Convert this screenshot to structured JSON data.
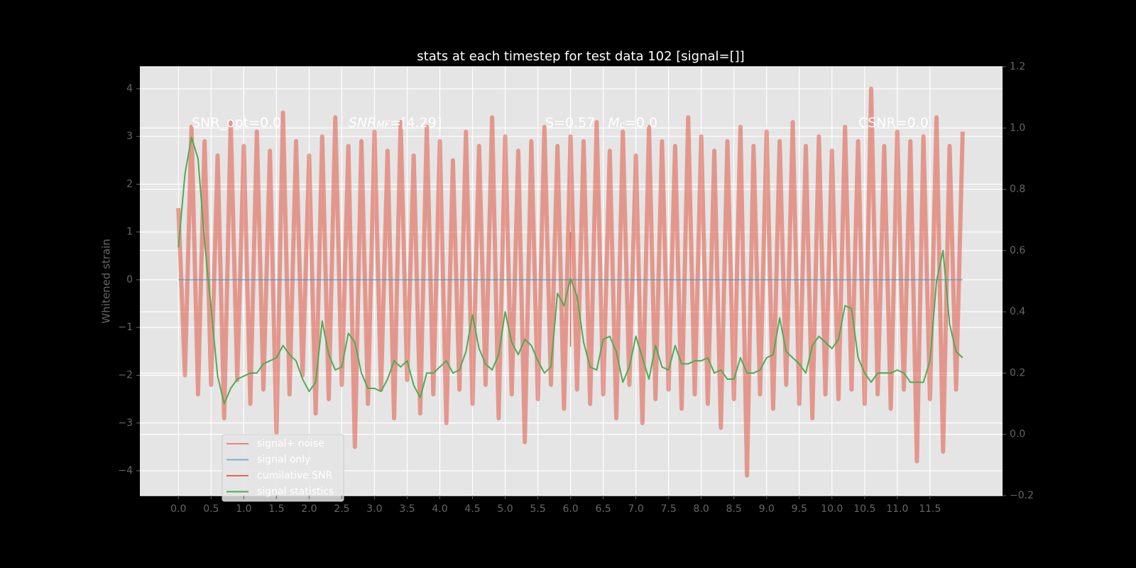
{
  "chart_data": {
    "type": "line",
    "title": "stats at each timestep for test data 102 [signal=[]]",
    "ylabel": "Whitened strain",
    "x": [
      0,
      0.1,
      0.2,
      0.3,
      0.4,
      0.5,
      0.6,
      0.7,
      0.8,
      0.9,
      1,
      1.1,
      1.2,
      1.3,
      1.4,
      1.5,
      1.6,
      1.7,
      1.8,
      1.9,
      2,
      2.1,
      2.2,
      2.3,
      2.4,
      2.5,
      2.6,
      2.7,
      2.8,
      2.9,
      3,
      3.1,
      3.2,
      3.3,
      3.4,
      3.5,
      3.6,
      3.7,
      3.8,
      3.9,
      4,
      4.1,
      4.2,
      4.3,
      4.4,
      4.5,
      4.6,
      4.7,
      4.8,
      4.9,
      5,
      5.1,
      5.2,
      5.3,
      5.4,
      5.5,
      5.6,
      5.7,
      5.8,
      5.9,
      6,
      6.1,
      6.2,
      6.3,
      6.4,
      6.5,
      6.6,
      6.7,
      6.8,
      6.9,
      7,
      7.1,
      7.2,
      7.3,
      7.4,
      7.5,
      7.6,
      7.7,
      7.8,
      7.9,
      8,
      8.1,
      8.2,
      8.3,
      8.4,
      8.5,
      8.6,
      8.7,
      8.8,
      8.9,
      9,
      9.1,
      9.2,
      9.3,
      9.4,
      9.5,
      9.6,
      9.7,
      9.8,
      9.9,
      10,
      10.1,
      10.2,
      10.3,
      10.4,
      10.5,
      10.6,
      10.7,
      10.8,
      10.9,
      11,
      11.1,
      11.2,
      11.3,
      11.4,
      11.5,
      11.6,
      11.7,
      11.8,
      11.9,
      12
    ],
    "series": [
      {
        "name": "signal+ noise",
        "color": "#e24a33",
        "opacity": 0.5,
        "values": [
          1.5,
          -2.0,
          3.2,
          -2.4,
          2.9,
          -2.2,
          2.6,
          -2.9,
          3.3,
          -2.1,
          2.8,
          -2.6,
          3.1,
          -2.3,
          2.7,
          -3.2,
          3.5,
          -2.4,
          2.9,
          -2.0,
          2.6,
          -2.8,
          3.0,
          -2.5,
          3.4,
          -2.2,
          2.8,
          -3.5,
          2.9,
          -2.6,
          3.1,
          -2.3,
          2.7,
          -2.9,
          3.3,
          -2.1,
          2.6,
          -2.8,
          3.2,
          -2.4,
          2.9,
          -3.0,
          2.5,
          -2.3,
          3.1,
          -2.6,
          2.8,
          -2.2,
          3.4,
          -2.9,
          3.0,
          -2.4,
          2.7,
          -3.4,
          2.9,
          -2.5,
          3.2,
          -2.2,
          2.8,
          -2.7,
          3.0,
          -2.3,
          2.9,
          -2.6,
          3.3,
          -2.4,
          2.7,
          -2.9,
          3.1,
          -2.2,
          2.6,
          -3.0,
          3.2,
          -2.5,
          2.9,
          -2.3,
          2.8,
          -2.7,
          3.4,
          -2.4,
          3.0,
          -2.6,
          2.7,
          -3.1,
          2.9,
          -2.5,
          3.2,
          -4.1,
          2.8,
          -2.4,
          3.1,
          -2.7,
          2.9,
          -2.2,
          3.3,
          -2.6,
          2.8,
          -2.9,
          3.0,
          -2.4,
          2.7,
          -2.5,
          3.2,
          -2.3,
          2.9,
          -2.6,
          4.0,
          -2.4,
          2.8,
          -2.7,
          3.1,
          -2.3,
          2.9,
          -3.8,
          3.0,
          -2.5,
          3.4,
          -3.6,
          2.8,
          -2.3,
          3.1
        ]
      },
      {
        "name": "signal only",
        "color": "#348abd",
        "opacity": 0.5,
        "values": [
          0,
          0,
          0,
          0,
          0,
          0,
          0,
          0,
          0,
          0,
          0,
          0,
          0,
          0,
          0,
          0,
          0,
          0,
          0,
          0,
          0,
          0,
          0,
          0,
          0,
          0,
          0,
          0,
          0,
          0,
          0,
          0,
          0,
          0,
          0,
          0,
          0,
          0,
          0,
          0,
          0,
          0,
          0,
          0,
          0,
          0,
          0,
          0,
          0,
          0,
          0,
          0,
          0,
          0,
          0,
          0,
          0,
          0,
          0,
          0,
          0,
          0,
          0,
          0,
          0,
          0,
          0,
          0,
          0,
          0,
          0,
          0,
          0,
          0,
          0,
          0,
          0,
          0,
          0,
          0,
          0,
          0,
          0,
          0,
          0,
          0,
          0,
          0,
          0,
          0,
          0,
          0,
          0,
          0,
          0,
          0,
          0,
          0,
          0,
          0,
          0,
          0,
          0,
          0,
          0,
          0,
          0,
          0,
          0,
          0,
          0,
          0,
          0,
          0,
          0,
          0,
          0,
          0,
          0,
          0,
          0
        ]
      },
      {
        "name": "cumilative SNR",
        "color": "#e24a33",
        "opacity": 0.8,
        "x": [
          6,
          6
        ],
        "values": [
          -1.4,
          1.0
        ]
      },
      {
        "name": "signal statistics",
        "color": "#55a855",
        "opacity": 1,
        "axis": "y2",
        "values": [
          0.61,
          0.85,
          0.97,
          0.9,
          0.63,
          0.41,
          0.19,
          0.1,
          0.15,
          0.18,
          0.19,
          0.2,
          0.2,
          0.23,
          0.24,
          0.25,
          0.29,
          0.26,
          0.24,
          0.18,
          0.14,
          0.17,
          0.37,
          0.26,
          0.21,
          0.22,
          0.33,
          0.3,
          0.2,
          0.15,
          0.15,
          0.14,
          0.18,
          0.24,
          0.22,
          0.24,
          0.16,
          0.12,
          0.2,
          0.2,
          0.22,
          0.24,
          0.2,
          0.21,
          0.27,
          0.39,
          0.28,
          0.23,
          0.21,
          0.26,
          0.4,
          0.3,
          0.26,
          0.31,
          0.29,
          0.24,
          0.2,
          0.22,
          0.46,
          0.42,
          0.51,
          0.45,
          0.3,
          0.22,
          0.21,
          0.31,
          0.32,
          0.27,
          0.17,
          0.22,
          0.32,
          0.25,
          0.18,
          0.29,
          0.22,
          0.21,
          0.29,
          0.23,
          0.23,
          0.24,
          0.24,
          0.25,
          0.2,
          0.21,
          0.18,
          0.18,
          0.25,
          0.2,
          0.2,
          0.21,
          0.25,
          0.26,
          0.38,
          0.27,
          0.25,
          0.23,
          0.2,
          0.29,
          0.32,
          0.3,
          0.28,
          0.31,
          0.42,
          0.41,
          0.25,
          0.2,
          0.17,
          0.2,
          0.2,
          0.2,
          0.21,
          0.2,
          0.17,
          0.17,
          0.17,
          0.24,
          0.5,
          0.6,
          0.36,
          0.27,
          0.25
        ]
      }
    ],
    "xlim": [
      -0.59,
      12.61
    ],
    "xticks": [
      {
        "value": 0,
        "label": "0.0"
      },
      {
        "value": 0.5,
        "label": "0.5"
      },
      {
        "value": 1,
        "label": "1.0"
      },
      {
        "value": 1.5,
        "label": "1.5"
      },
      {
        "value": 2,
        "label": "2.0"
      },
      {
        "value": 2.5,
        "label": "2.5"
      },
      {
        "value": 3,
        "label": "3.0"
      },
      {
        "value": 3.5,
        "label": "3.5"
      },
      {
        "value": 4,
        "label": "4.0"
      },
      {
        "value": 4.5,
        "label": "4.5"
      },
      {
        "value": 5,
        "label": "5.0"
      },
      {
        "value": 5.5,
        "label": "5.5"
      },
      {
        "value": 6,
        "label": "6.0"
      },
      {
        "value": 6.5,
        "label": "6.5"
      },
      {
        "value": 7,
        "label": "7.0"
      },
      {
        "value": 7.5,
        "label": "7.5"
      },
      {
        "value": 8,
        "label": "8.0"
      },
      {
        "value": 8.5,
        "label": "8.5"
      },
      {
        "value": 9,
        "label": "9.0"
      },
      {
        "value": 9.5,
        "label": "9.5"
      },
      {
        "value": 10,
        "label": "10.0"
      },
      {
        "value": 10.5,
        "label": "10.5"
      },
      {
        "value": 11,
        "label": "11.0"
      },
      {
        "value": 11.5,
        "label": "11.5"
      }
    ],
    "ylim": [
      -4.52,
      4.46
    ],
    "yticks": [
      {
        "value": -4,
        "label": "−4"
      },
      {
        "value": -3,
        "label": "−3"
      },
      {
        "value": -2,
        "label": "−2"
      },
      {
        "value": -1,
        "label": "−1"
      },
      0,
      1,
      2,
      3,
      4
    ],
    "y2lim": [
      -0.2,
      1.2
    ],
    "y2ticks": [
      {
        "value": -0.2,
        "label": "−0.2"
      },
      {
        "value": 0,
        "label": "0.0"
      },
      {
        "value": 0.2,
        "label": "0.2"
      },
      {
        "value": 0.4,
        "label": "0.4"
      },
      {
        "value": 0.6,
        "label": "0.6"
      },
      {
        "value": 0.8,
        "label": "0.8"
      },
      {
        "value": 1,
        "label": "1.0"
      },
      {
        "value": 1.2,
        "label": "1.2"
      }
    ],
    "grid": true,
    "legend": "lower left",
    "annotations": [
      {
        "parts": [
          {
            "text": "SNR_opt=0.0"
          }
        ]
      },
      {
        "parts": [
          {
            "text": "SNR",
            "style": "italic"
          },
          {
            "text": "MF",
            "style": "sub"
          },
          {
            "text": "=[4.29]"
          }
        ]
      },
      {
        "parts": [
          {
            "text": "S=0.57   "
          },
          {
            "text": "M",
            "style": "italic"
          },
          {
            "text": "c",
            "style": "sub"
          },
          {
            "text": "=0.0"
          }
        ]
      },
      {
        "parts": [
          {
            "text": "CSNR=0.0"
          }
        ]
      }
    ]
  }
}
